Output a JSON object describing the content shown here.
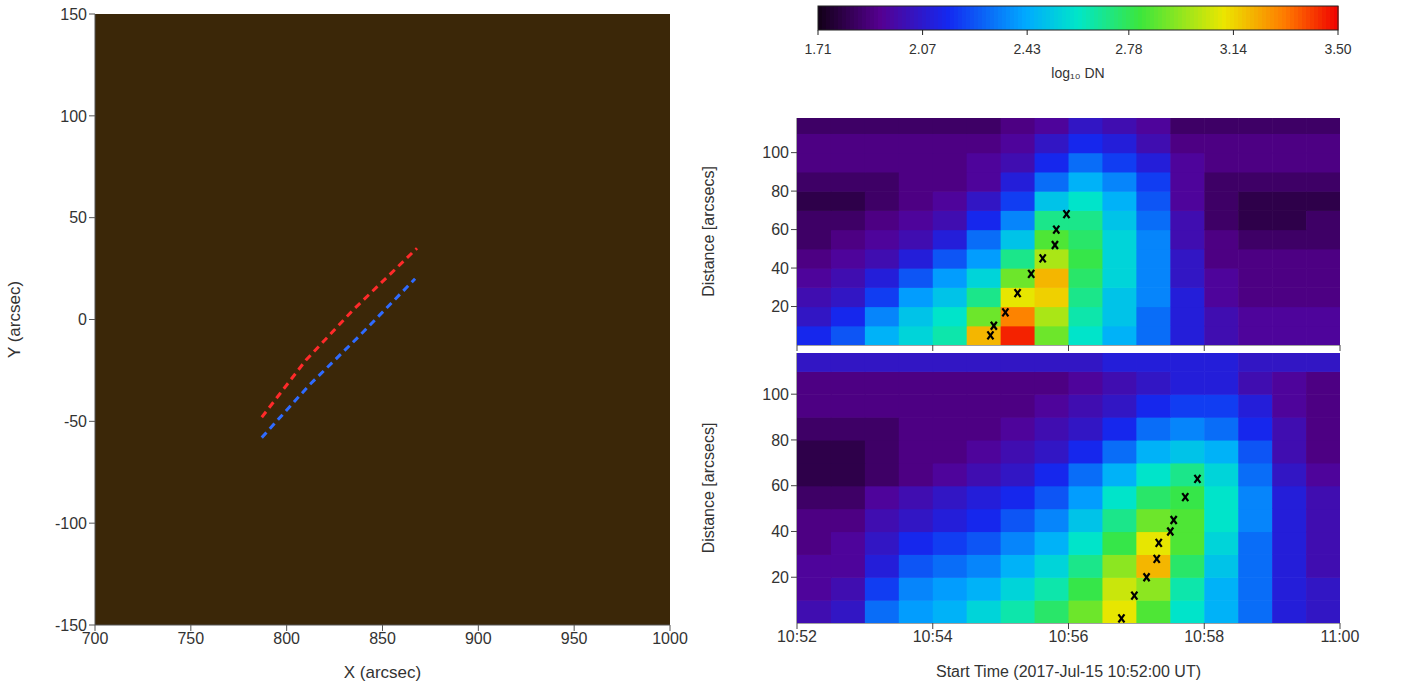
{
  "chart_data": [
    {
      "type": "line",
      "xlabel": "X (arcsec)",
      "ylabel": "Y (arcsec)",
      "xlim": [
        700,
        1000
      ],
      "xticks": [
        700,
        750,
        800,
        850,
        900,
        950,
        1000
      ],
      "ylim": [
        -150,
        150
      ],
      "yticks": [
        -150,
        -100,
        -50,
        0,
        50,
        100,
        150
      ],
      "series": [
        {
          "color": "#ff2a2a",
          "line_style": "dashed",
          "x": [
            787,
            810,
            835,
            868
          ],
          "values": [
            -48,
            -20,
            5,
            35
          ]
        },
        {
          "color": "#2f6bff",
          "line_style": "dashed",
          "x": [
            787,
            812,
            838,
            867
          ],
          "values": [
            -58,
            -32,
            -8,
            20
          ]
        }
      ]
    },
    {
      "type": "heatmap",
      "ylabel": "Distance [arcsecs]",
      "xlim": [
        0,
        8
      ],
      "xticks": [
        {
          "value": 0,
          "label": "10:52"
        },
        {
          "value": 2,
          "label": "10:54"
        },
        {
          "value": 4,
          "label": "10:56"
        },
        {
          "value": 6,
          "label": "10:58"
        },
        {
          "value": 8,
          "label": "11:00"
        }
      ],
      "ylim": [
        0,
        118
      ],
      "yticks": [
        20,
        40,
        60,
        80,
        100
      ],
      "tick_labels": "y",
      "x": [
        0.25,
        0.75,
        1.25,
        1.75,
        2.25,
        2.75,
        3.25,
        3.75,
        4.25,
        4.75,
        5.25,
        5.75,
        6.25,
        6.75,
        7.25,
        7.75
      ],
      "y": [
        5,
        15,
        25,
        35,
        45,
        55,
        65,
        75,
        85,
        95,
        105,
        115
      ],
      "cells": [
        [
          2.15,
          2.25,
          2.45,
          2.55,
          2.65,
          3.2,
          3.45,
          2.9,
          2.6,
          2.45,
          2.3,
          2.1,
          2.0,
          1.95,
          1.95,
          1.95
        ],
        [
          2.05,
          2.15,
          2.35,
          2.5,
          2.6,
          2.9,
          3.3,
          3.0,
          2.65,
          2.5,
          2.3,
          2.1,
          2.0,
          1.95,
          1.95,
          1.95
        ],
        [
          2.0,
          2.05,
          2.2,
          2.4,
          2.5,
          2.7,
          3.1,
          3.15,
          2.7,
          2.5,
          2.35,
          2.1,
          1.95,
          1.9,
          1.9,
          1.9
        ],
        [
          1.95,
          2.0,
          2.1,
          2.25,
          2.4,
          2.55,
          2.9,
          3.2,
          2.75,
          2.55,
          2.35,
          2.05,
          1.95,
          1.9,
          1.9,
          1.9
        ],
        [
          1.9,
          1.95,
          2.0,
          2.1,
          2.25,
          2.4,
          2.7,
          3.0,
          2.8,
          2.55,
          2.35,
          2.05,
          1.9,
          1.9,
          1.9,
          1.9
        ],
        [
          1.85,
          1.9,
          1.95,
          2.0,
          2.1,
          2.3,
          2.5,
          2.85,
          2.75,
          2.55,
          2.35,
          2.0,
          1.9,
          1.85,
          1.85,
          1.85
        ],
        [
          1.85,
          1.85,
          1.9,
          1.95,
          2.0,
          2.15,
          2.35,
          2.7,
          2.7,
          2.5,
          2.3,
          2.0,
          1.85,
          1.8,
          1.8,
          1.85
        ],
        [
          1.8,
          1.8,
          1.85,
          1.9,
          1.95,
          2.05,
          2.2,
          2.5,
          2.6,
          2.45,
          2.25,
          1.95,
          1.85,
          1.8,
          1.8,
          1.8
        ],
        [
          1.85,
          1.85,
          1.85,
          1.9,
          1.9,
          1.95,
          2.1,
          2.3,
          2.45,
          2.35,
          2.2,
          1.95,
          1.85,
          1.85,
          1.85,
          1.85
        ],
        [
          1.9,
          1.9,
          1.9,
          1.9,
          1.9,
          1.95,
          2.0,
          2.15,
          2.3,
          2.2,
          2.1,
          1.95,
          1.9,
          1.9,
          1.9,
          1.9
        ],
        [
          1.9,
          1.9,
          1.9,
          1.9,
          1.9,
          1.9,
          1.95,
          2.05,
          2.15,
          2.1,
          2.0,
          1.9,
          1.9,
          1.9,
          1.9,
          1.9
        ],
        [
          1.85,
          1.85,
          1.85,
          1.85,
          1.85,
          1.85,
          1.9,
          1.95,
          2.05,
          2.0,
          1.95,
          1.85,
          1.85,
          1.85,
          1.85,
          1.85
        ]
      ],
      "series": [
        {
          "type": "scatter",
          "marker": "x",
          "color": "#000000",
          "x": [
            2.85,
            2.9,
            3.07,
            3.25,
            3.45,
            3.62,
            3.8,
            3.82,
            3.97
          ],
          "values": [
            5,
            10,
            17,
            27,
            37,
            45,
            52,
            60,
            68
          ]
        }
      ]
    },
    {
      "type": "heatmap",
      "xlabel": "Start Time (2017-Jul-15 10:52:00 UT)",
      "ylabel": "Distance [arcsecs]",
      "xlim": [
        0,
        8
      ],
      "xticks": [
        {
          "value": 0,
          "label": "10:52"
        },
        {
          "value": 2,
          "label": "10:54"
        },
        {
          "value": 4,
          "label": "10:56"
        },
        {
          "value": 6,
          "label": "10:58"
        },
        {
          "value": 8,
          "label": "11:00"
        }
      ],
      "ylim": [
        0,
        118
      ],
      "yticks": [
        20,
        40,
        60,
        80,
        100
      ],
      "x": [
        0.25,
        0.75,
        1.25,
        1.75,
        2.25,
        2.75,
        3.25,
        3.75,
        4.25,
        4.75,
        5.25,
        5.75,
        6.25,
        6.75,
        7.25,
        7.75
      ],
      "y": [
        5,
        15,
        25,
        35,
        45,
        55,
        65,
        75,
        85,
        95,
        105,
        115
      ],
      "cells": [
        [
          2.0,
          2.05,
          2.3,
          2.4,
          2.45,
          2.55,
          2.65,
          2.75,
          2.9,
          3.1,
          2.85,
          2.6,
          2.45,
          2.3,
          2.1,
          2.05
        ],
        [
          1.95,
          2.0,
          2.2,
          2.35,
          2.4,
          2.45,
          2.55,
          2.65,
          2.8,
          3.05,
          2.95,
          2.65,
          2.45,
          2.3,
          2.1,
          2.05
        ],
        [
          1.95,
          1.95,
          2.1,
          2.25,
          2.3,
          2.35,
          2.45,
          2.55,
          2.7,
          2.95,
          3.2,
          2.75,
          2.5,
          2.3,
          2.1,
          2.0
        ],
        [
          1.9,
          1.95,
          2.05,
          2.15,
          2.2,
          2.25,
          2.35,
          2.45,
          2.6,
          2.8,
          3.1,
          2.85,
          2.55,
          2.3,
          2.1,
          2.0
        ],
        [
          1.9,
          1.9,
          2.0,
          2.05,
          2.1,
          2.15,
          2.25,
          2.35,
          2.5,
          2.7,
          2.9,
          2.85,
          2.6,
          2.35,
          2.1,
          2.0
        ],
        [
          1.85,
          1.85,
          1.95,
          2.0,
          2.05,
          2.1,
          2.15,
          2.25,
          2.4,
          2.6,
          2.75,
          2.8,
          2.6,
          2.35,
          2.1,
          2.0
        ],
        [
          1.8,
          1.8,
          1.85,
          1.9,
          1.95,
          2.0,
          2.05,
          2.15,
          2.3,
          2.45,
          2.6,
          2.7,
          2.55,
          2.3,
          2.05,
          1.95
        ],
        [
          1.8,
          1.8,
          1.85,
          1.9,
          1.9,
          1.95,
          2.0,
          2.05,
          2.15,
          2.3,
          2.45,
          2.5,
          2.45,
          2.25,
          2.0,
          1.9
        ],
        [
          1.85,
          1.85,
          1.85,
          1.9,
          1.9,
          1.9,
          1.95,
          2.0,
          2.05,
          2.15,
          2.3,
          2.35,
          2.3,
          2.15,
          2.0,
          1.9
        ],
        [
          1.9,
          1.9,
          1.9,
          1.9,
          1.9,
          1.9,
          1.9,
          1.95,
          2.0,
          2.05,
          2.15,
          2.2,
          2.2,
          2.1,
          1.95,
          1.9
        ],
        [
          1.9,
          1.9,
          1.9,
          1.9,
          1.9,
          1.9,
          1.9,
          1.9,
          1.95,
          2.0,
          2.05,
          2.1,
          2.1,
          2.0,
          1.95,
          1.9
        ],
        [
          2.05,
          2.05,
          2.05,
          2.05,
          2.05,
          2.05,
          2.05,
          2.05,
          2.05,
          2.1,
          2.1,
          2.1,
          2.1,
          2.05,
          2.05,
          2.05
        ]
      ],
      "series": [
        {
          "type": "scatter",
          "marker": "x",
          "color": "#000000",
          "x": [
            4.78,
            4.97,
            5.15,
            5.3,
            5.33,
            5.5,
            5.55,
            5.72,
            5.9
          ],
          "values": [
            2,
            12,
            20,
            28,
            35,
            40,
            45,
            55,
            63
          ]
        }
      ]
    }
  ],
  "colorbar": {
    "range": [
      1.71,
      3.5
    ],
    "ticks": [
      1.71,
      2.07,
      2.43,
      2.78,
      3.14,
      {
        "value": 3.5,
        "label": "3.50"
      }
    ],
    "label": "log₁₀ DN"
  }
}
